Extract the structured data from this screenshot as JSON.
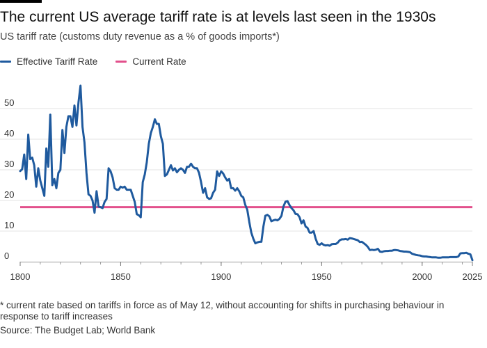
{
  "title": "The current US average tariff rate is at levels last seen in the 1930s",
  "subtitle": "US tariff rate (customs duty revenue as a % of goods imports*)",
  "footnote": "* current rate based on tariffs in force as of May 12, without accounting for shifts in purchasing behaviour in response to tariff increases",
  "source": "Source: The Budget Lab; World Bank",
  "colors": {
    "effective": "#1f5a9e",
    "current": "#e2508c",
    "grid": "#e3e3e3",
    "text": "#333333"
  },
  "chart_data": {
    "type": "line",
    "title": "The current US average tariff rate is at levels last seen in the 1930s",
    "xlabel": "",
    "ylabel": "US tariff rate (customs duty revenue as a % of goods imports*)",
    "xlim": [
      1800,
      2025
    ],
    "ylim": [
      0,
      60
    ],
    "x_ticks": [
      1800,
      1850,
      1900,
      1950,
      2000,
      2025
    ],
    "y_ticks": [
      0,
      10,
      20,
      30,
      40,
      50
    ],
    "grid": true,
    "legend": "top-left",
    "series": [
      {
        "name": "Effective Tariff Rate",
        "color": "#1f5a9e",
        "points": [
          [
            1800,
            29.6
          ],
          [
            1801,
            30.2
          ],
          [
            1802,
            35
          ],
          [
            1803,
            27
          ],
          [
            1804,
            41.5
          ],
          [
            1805,
            33.5
          ],
          [
            1806,
            34
          ],
          [
            1807,
            31.5
          ],
          [
            1808,
            24.5
          ],
          [
            1809,
            30.5
          ],
          [
            1810,
            26.5
          ],
          [
            1811,
            24
          ],
          [
            1812,
            21.5
          ],
          [
            1813,
            37
          ],
          [
            1814,
            31
          ],
          [
            1815,
            48
          ],
          [
            1816,
            25
          ],
          [
            1817,
            27
          ],
          [
            1818,
            24
          ],
          [
            1819,
            29
          ],
          [
            1820,
            30
          ],
          [
            1821,
            43
          ],
          [
            1822,
            35.5
          ],
          [
            1823,
            44
          ],
          [
            1824,
            47.5
          ],
          [
            1825,
            47.5
          ],
          [
            1826,
            44
          ],
          [
            1827,
            51
          ],
          [
            1828,
            44.5
          ],
          [
            1829,
            52
          ],
          [
            1830,
            57.5
          ],
          [
            1831,
            44
          ],
          [
            1832,
            39
          ],
          [
            1833,
            29
          ],
          [
            1834,
            22
          ],
          [
            1835,
            21.5
          ],
          [
            1836,
            20
          ],
          [
            1837,
            16
          ],
          [
            1838,
            23
          ],
          [
            1839,
            18
          ],
          [
            1840,
            17.8
          ],
          [
            1841,
            17.5
          ],
          [
            1842,
            19.5
          ],
          [
            1843,
            20.5
          ],
          [
            1844,
            30.5
          ],
          [
            1845,
            29.5
          ],
          [
            1846,
            27.5
          ],
          [
            1847,
            24
          ],
          [
            1848,
            23.5
          ],
          [
            1849,
            23.5
          ],
          [
            1850,
            24.5
          ],
          [
            1851,
            24.2
          ],
          [
            1852,
            24.5
          ],
          [
            1853,
            23.5
          ],
          [
            1854,
            23.5
          ],
          [
            1855,
            23.5
          ],
          [
            1856,
            21.5
          ],
          [
            1857,
            19.5
          ],
          [
            1858,
            15.5
          ],
          [
            1859,
            15.2
          ],
          [
            1860,
            14.5
          ],
          [
            1861,
            26
          ],
          [
            1862,
            28.5
          ],
          [
            1863,
            32.5
          ],
          [
            1864,
            38.5
          ],
          [
            1865,
            42
          ],
          [
            1866,
            44
          ],
          [
            1867,
            46.5
          ],
          [
            1868,
            45
          ],
          [
            1869,
            45
          ],
          [
            1870,
            41
          ],
          [
            1871,
            38.5
          ],
          [
            1872,
            28
          ],
          [
            1873,
            28.5
          ],
          [
            1874,
            30
          ],
          [
            1875,
            31.5
          ],
          [
            1876,
            29.8
          ],
          [
            1877,
            30.5
          ],
          [
            1878,
            29.2
          ],
          [
            1879,
            30
          ],
          [
            1880,
            30.5
          ],
          [
            1881,
            30
          ],
          [
            1882,
            29
          ],
          [
            1883,
            31
          ],
          [
            1884,
            31
          ],
          [
            1885,
            32
          ],
          [
            1886,
            31
          ],
          [
            1887,
            30.5
          ],
          [
            1888,
            30.5
          ],
          [
            1889,
            29
          ],
          [
            1890,
            26
          ],
          [
            1891,
            22.5
          ],
          [
            1892,
            24
          ],
          [
            1893,
            21
          ],
          [
            1894,
            20.5
          ],
          [
            1895,
            20.7
          ],
          [
            1896,
            22.5
          ],
          [
            1897,
            23.5
          ],
          [
            1898,
            29.5
          ],
          [
            1899,
            28
          ],
          [
            1900,
            29.5
          ],
          [
            1901,
            28.8
          ],
          [
            1902,
            27.5
          ],
          [
            1903,
            26.5
          ],
          [
            1904,
            27
          ],
          [
            1905,
            24
          ],
          [
            1906,
            24
          ],
          [
            1907,
            23.2
          ],
          [
            1908,
            24
          ],
          [
            1909,
            23
          ],
          [
            1910,
            21.5
          ],
          [
            1911,
            21
          ],
          [
            1912,
            18.5
          ],
          [
            1913,
            17
          ],
          [
            1914,
            13
          ],
          [
            1915,
            9.5
          ],
          [
            1916,
            7.5
          ],
          [
            1917,
            6
          ],
          [
            1918,
            6.3
          ],
          [
            1919,
            6.5
          ],
          [
            1920,
            6.5
          ],
          [
            1921,
            11.5
          ],
          [
            1922,
            15
          ],
          [
            1923,
            15.3
          ],
          [
            1924,
            14.8
          ],
          [
            1925,
            13.2
          ],
          [
            1926,
            13.5
          ],
          [
            1927,
            13.7
          ],
          [
            1928,
            13.5
          ],
          [
            1929,
            14
          ],
          [
            1930,
            15
          ],
          [
            1931,
            18
          ],
          [
            1932,
            19.6
          ],
          [
            1933,
            19.8
          ],
          [
            1934,
            18.5
          ],
          [
            1935,
            17.5
          ],
          [
            1936,
            16.8
          ],
          [
            1937,
            15.6
          ],
          [
            1938,
            15.5
          ],
          [
            1939,
            14.5
          ],
          [
            1940,
            12.5
          ],
          [
            1941,
            13.5
          ],
          [
            1942,
            11.5
          ],
          [
            1943,
            11
          ],
          [
            1944,
            9.5
          ],
          [
            1945,
            9.5
          ],
          [
            1946,
            10
          ],
          [
            1947,
            7.5
          ],
          [
            1948,
            5.8
          ],
          [
            1949,
            5.5
          ],
          [
            1950,
            6
          ],
          [
            1951,
            5.5
          ],
          [
            1952,
            5.3
          ],
          [
            1953,
            5.4
          ],
          [
            1954,
            5.2
          ],
          [
            1955,
            5.7
          ],
          [
            1956,
            5.8
          ],
          [
            1957,
            5.8
          ],
          [
            1958,
            6.2
          ],
          [
            1959,
            7
          ],
          [
            1960,
            7.3
          ],
          [
            1961,
            7.3
          ],
          [
            1962,
            7.4
          ],
          [
            1963,
            7.2
          ],
          [
            1964,
            7.7
          ],
          [
            1965,
            7.6
          ],
          [
            1966,
            7.4
          ],
          [
            1967,
            7.2
          ],
          [
            1968,
            7
          ],
          [
            1969,
            6.4
          ],
          [
            1970,
            6.5
          ],
          [
            1971,
            6
          ],
          [
            1972,
            5.5
          ],
          [
            1973,
            4.8
          ],
          [
            1974,
            3.8
          ],
          [
            1975,
            3.9
          ],
          [
            1976,
            3.8
          ],
          [
            1977,
            3.9
          ],
          [
            1978,
            4.2
          ],
          [
            1979,
            3.3
          ],
          [
            1980,
            3.2
          ],
          [
            1981,
            3.4
          ],
          [
            1982,
            3.5
          ],
          [
            1983,
            3.5
          ],
          [
            1984,
            3.6
          ],
          [
            1985,
            3.6
          ],
          [
            1986,
            3.8
          ],
          [
            1987,
            3.8
          ],
          [
            1988,
            3.7
          ],
          [
            1989,
            3.5
          ],
          [
            1990,
            3.4
          ],
          [
            1991,
            3.3
          ],
          [
            1992,
            3.3
          ],
          [
            1993,
            3.2
          ],
          [
            1994,
            3.1
          ],
          [
            1995,
            2.6
          ],
          [
            1996,
            2.4
          ],
          [
            1997,
            2.2
          ],
          [
            1998,
            2.1
          ],
          [
            1999,
            2
          ],
          [
            2000,
            1.8
          ],
          [
            2001,
            1.7
          ],
          [
            2002,
            1.7
          ],
          [
            2003,
            1.6
          ],
          [
            2004,
            1.5
          ],
          [
            2005,
            1.4
          ],
          [
            2006,
            1.4
          ],
          [
            2007,
            1.4
          ],
          [
            2008,
            1.3
          ],
          [
            2009,
            1.3
          ],
          [
            2010,
            1.4
          ],
          [
            2011,
            1.4
          ],
          [
            2012,
            1.4
          ],
          [
            2013,
            1.4
          ],
          [
            2014,
            1.5
          ],
          [
            2015,
            1.5
          ],
          [
            2016,
            1.5
          ],
          [
            2017,
            1.5
          ],
          [
            2018,
            1.7
          ],
          [
            2019,
            2.7
          ],
          [
            2020,
            2.8
          ],
          [
            2021,
            2.8
          ],
          [
            2022,
            2.9
          ],
          [
            2023,
            2.6
          ],
          [
            2024,
            2.4
          ],
          [
            2025,
            0.5
          ]
        ]
      },
      {
        "name": "Current Rate",
        "color": "#e2508c",
        "points": [
          [
            1800,
            17.8
          ],
          [
            2025,
            17.8
          ]
        ]
      }
    ]
  }
}
